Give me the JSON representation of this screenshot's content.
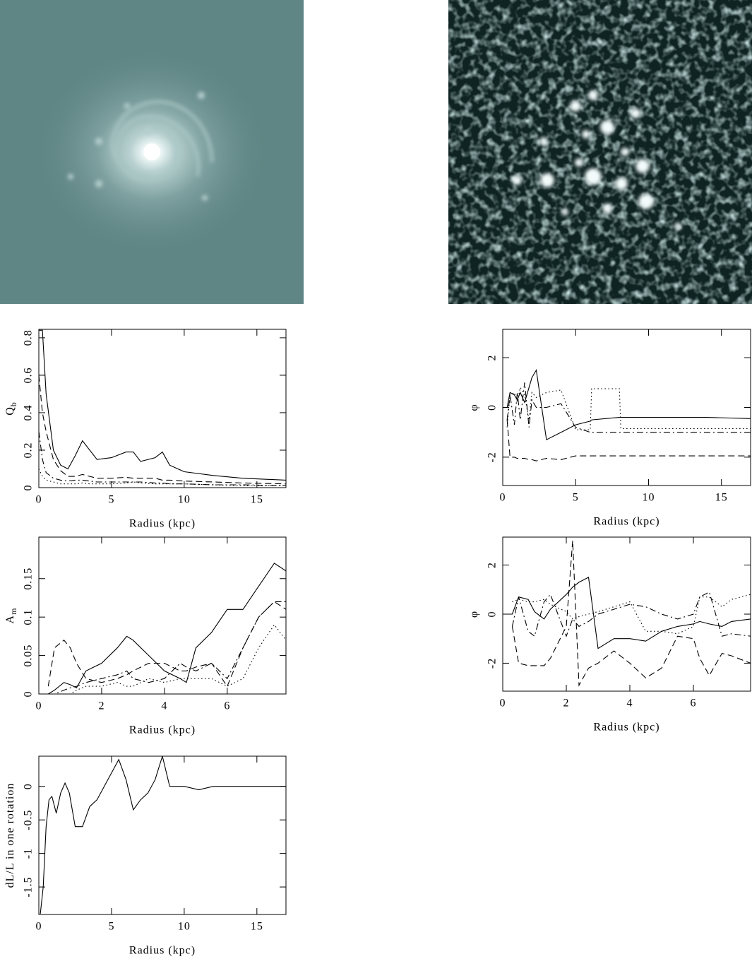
{
  "chart_data": [
    {
      "type": "line",
      "xlabel": "Radius (kpc)",
      "ylabel": {
        "text": "Q",
        "sub": "b"
      },
      "x": [
        0,
        0.25,
        0.5,
        1,
        1.5,
        2,
        2.5,
        3,
        3.5,
        4,
        5,
        6,
        6.5,
        7,
        8,
        8.5,
        9,
        10,
        12,
        14,
        17
      ],
      "xlim": [
        0,
        17
      ],
      "xticks": [
        0,
        5,
        10,
        15
      ],
      "ylim": [
        0,
        0.845
      ],
      "yticks": [
        0,
        0.2,
        0.4,
        0.6,
        0.8
      ],
      "grid": false,
      "series": [
        {
          "color": "#000000",
          "style": "solid",
          "values": [
            0.84,
            0.84,
            0.5,
            0.2,
            0.12,
            0.1,
            0.17,
            0.25,
            0.2,
            0.15,
            0.16,
            0.19,
            0.19,
            0.14,
            0.16,
            0.19,
            0.12,
            0.085,
            0.065,
            0.05,
            0.04
          ]
        },
        {
          "color": "#000000",
          "style": "dashed",
          "values": [
            0.6,
            0.4,
            0.3,
            0.15,
            0.09,
            0.06,
            0.06,
            0.07,
            0.06,
            0.05,
            0.05,
            0.055,
            0.05,
            0.05,
            0.05,
            0.04,
            0.04,
            0.035,
            0.03,
            0.025,
            0.02
          ]
        },
        {
          "color": "#000000",
          "style": "dotted",
          "values": [
            0.1,
            0.06,
            0.04,
            0.03,
            0.02,
            0.02,
            0.02,
            0.025,
            0.02,
            0.02,
            0.02,
            0.025,
            0.03,
            0.025,
            0.02,
            0.02,
            0.02,
            0.02,
            0.015,
            0.01,
            0.01
          ]
        },
        {
          "color": "#000000",
          "style": "dashdot",
          "values": [
            0.3,
            0.15,
            0.08,
            0.05,
            0.04,
            0.035,
            0.04,
            0.04,
            0.035,
            0.03,
            0.03,
            0.03,
            0.03,
            0.03,
            0.025,
            0.025,
            0.02,
            0.02,
            0.015,
            0.015,
            0.01
          ]
        }
      ]
    },
    {
      "type": "line",
      "xlabel": "Radius (kpc)",
      "ylabel": {
        "text": "φ"
      },
      "x": [
        0.3,
        0.5,
        0.8,
        1,
        1.2,
        1.5,
        1.8,
        2,
        2.3,
        3,
        4,
        5,
        6,
        6.1,
        8,
        8.1,
        10,
        12,
        14,
        17
      ],
      "xlim": [
        0,
        17
      ],
      "xticks": [
        0,
        5,
        10,
        15
      ],
      "ylim": [
        -3.14,
        3.14
      ],
      "yticks": [
        -2,
        0,
        2
      ],
      "grid": false,
      "series": [
        {
          "color": "#000000",
          "style": "solid",
          "values": [
            0,
            0.6,
            0.5,
            0.3,
            0.6,
            0.2,
            0.8,
            1.2,
            1.5,
            -1.3,
            -1.0,
            -0.7,
            -0.55,
            -0.5,
            -0.4,
            -0.4,
            -0.4,
            -0.4,
            -0.4,
            -0.45
          ]
        },
        {
          "color": "#000000",
          "style": "dashed",
          "values": [
            -0.5,
            -2.0,
            -2.0,
            -2.05,
            -2.05,
            -2.05,
            -2.1,
            -2.1,
            -2.15,
            -2.05,
            -2.1,
            -1.95,
            -1.95,
            -1.95,
            -1.95,
            -1.95,
            -1.95,
            -1.95,
            -1.95,
            -1.95
          ]
        },
        {
          "color": "#000000",
          "style": "dotted",
          "values": [
            -0.8,
            0.5,
            0.6,
            0.2,
            0.8,
            0.5,
            -0.5,
            0.6,
            0.4,
            0.6,
            0.7,
            -0.9,
            -0.9,
            0.75,
            0.75,
            -0.85,
            -0.85,
            -0.85,
            -0.85,
            -0.85
          ]
        },
        {
          "color": "#000000",
          "style": "dashdot",
          "values": [
            -0.5,
            0.5,
            -0.7,
            0.6,
            -0.5,
            1.0,
            -0.8,
            0.3,
            0,
            0,
            0.15,
            -0.8,
            -1.0,
            -1.0,
            -1.0,
            -1.0,
            -1.0,
            -1.0,
            -1.0,
            -1.0
          ]
        }
      ]
    },
    {
      "type": "line",
      "xlabel": "Radius (kpc)",
      "ylabel": {
        "text": "A",
        "sub": "m"
      },
      "x": [
        0.3,
        0.5,
        0.8,
        1,
        1.2,
        1.5,
        2,
        2.5,
        2.8,
        3,
        3.5,
        4,
        4.5,
        4.7,
        5,
        5.5,
        6,
        6.5,
        7,
        7.5,
        7.87
      ],
      "xlim": [
        0,
        7.87
      ],
      "xticks": [
        0,
        2,
        4,
        6
      ],
      "ylim": [
        0,
        0.204
      ],
      "yticks": [
        0,
        0.05,
        0.1,
        0.15
      ],
      "grid": false,
      "series": [
        {
          "color": "#000000",
          "style": "solid",
          "values": [
            0,
            0.005,
            0.015,
            0.012,
            0.008,
            0.03,
            0.04,
            0.06,
            0.075,
            0.07,
            0.05,
            0.03,
            0.02,
            0.015,
            0.06,
            0.08,
            0.11,
            0.11,
            0.14,
            0.17,
            0.16
          ]
        },
        {
          "color": "#000000",
          "style": "dashed",
          "values": [
            0.01,
            0.06,
            0.07,
            0.06,
            0.04,
            0.02,
            0.015,
            0.02,
            0.025,
            0.03,
            0.04,
            0.04,
            0.03,
            0.03,
            0.035,
            0.04,
            0.01,
            0.06,
            0.1,
            0.12,
            0.11
          ]
        },
        {
          "color": "#000000",
          "style": "dotted",
          "values": [
            0,
            0,
            0,
            0,
            0.005,
            0.01,
            0.01,
            0.015,
            0.01,
            0.01,
            0.02,
            0.015,
            0.02,
            0.02,
            0.02,
            0.02,
            0.01,
            0.02,
            0.06,
            0.09,
            0.07
          ]
        },
        {
          "color": "#000000",
          "style": "dashdot",
          "values": [
            0,
            0,
            0.005,
            0.008,
            0.01,
            0.015,
            0.02,
            0.025,
            0.03,
            0.02,
            0.015,
            0.02,
            0.04,
            0.035,
            0.03,
            0.04,
            0.02,
            0.06,
            0.1,
            0.12,
            0.12
          ]
        }
      ]
    },
    {
      "type": "line",
      "xlabel": "Radius (kpc)",
      "ylabel": {
        "text": "φ"
      },
      "x": [
        0,
        0.3,
        0.5,
        0.8,
        1,
        1.3,
        1.5,
        2,
        2.2,
        2.4,
        2.7,
        3,
        3.5,
        4,
        4.5,
        5,
        5.5,
        6,
        6.2,
        6.5,
        6.9,
        7.2,
        7.8
      ],
      "xlim": [
        0,
        7.8
      ],
      "xticks": [
        0,
        2,
        4,
        6
      ],
      "ylim": [
        -3.14,
        3.14
      ],
      "yticks": [
        -2,
        0,
        2
      ],
      "grid": false,
      "series": [
        {
          "color": "#000000",
          "style": "solid",
          "values": [
            0,
            0,
            0.7,
            0.6,
            0.1,
            -0.2,
            0.2,
            0.8,
            1.1,
            1.3,
            1.5,
            -1.4,
            -1.0,
            -1.0,
            -1.1,
            -0.7,
            -0.5,
            -0.4,
            -0.3,
            -0.4,
            -0.5,
            -0.3,
            -0.2
          ]
        },
        {
          "color": "#000000",
          "style": "dashed",
          "values": [
            null,
            -0.5,
            -2,
            -2.1,
            -2.1,
            -2.1,
            -1.8,
            -0.5,
            3.0,
            -2.9,
            -2.2,
            -2.0,
            -1.5,
            -2.0,
            -2.6,
            -2.2,
            -0.9,
            -1.0,
            -1.8,
            -2.5,
            -1.6,
            -1.7,
            -2.0
          ]
        },
        {
          "color": "#000000",
          "style": "dotted",
          "values": [
            null,
            0.5,
            0.6,
            0.5,
            0.5,
            0.6,
            0.4,
            0.1,
            -0.2,
            -0.1,
            0,
            0.1,
            0.3,
            0.5,
            -0.7,
            -0.7,
            -0.8,
            -0.5,
            0.7,
            0.7,
            0.3,
            0.6,
            0.8
          ]
        },
        {
          "color": "#000000",
          "style": "dashdot",
          "values": [
            null,
            -0.5,
            0.7,
            -0.7,
            -0.9,
            0.5,
            0.8,
            -0.9,
            -0.2,
            -0.5,
            -0.3,
            0,
            0.2,
            0.4,
            0.3,
            0,
            -0.2,
            0,
            0.7,
            0.9,
            -0.9,
            -0.8,
            -0.9
          ]
        }
      ]
    },
    {
      "type": "line",
      "xlabel": "Radius (kpc)",
      "ylabel": {
        "text": "dL/L in one rotation"
      },
      "x": [
        0.1,
        0.3,
        0.5,
        0.7,
        0.9,
        1.2,
        1.5,
        1.8,
        2.1,
        2.5,
        3,
        3.5,
        4,
        4.5,
        5,
        5.5,
        6,
        6.5,
        7,
        7.5,
        8,
        8.5,
        9,
        10,
        11,
        12,
        14,
        17
      ],
      "xlim": [
        0,
        17
      ],
      "xticks": [
        0,
        5,
        10,
        15
      ],
      "ylim": [
        -1.91,
        0.45
      ],
      "yticks": [
        -1.5,
        -1,
        -0.5,
        0
      ],
      "grid": false,
      "series": [
        {
          "color": "#000000",
          "style": "solid",
          "values": [
            -1.9,
            -1.5,
            -0.6,
            -0.2,
            -0.15,
            -0.4,
            -0.1,
            0.05,
            -0.1,
            -0.6,
            -0.6,
            -0.3,
            -0.2,
            0.0,
            0.2,
            0.4,
            0.1,
            -0.35,
            -0.2,
            -0.1,
            0.1,
            0.45,
            0.0,
            0,
            -0.05,
            0,
            0,
            0.0
          ]
        }
      ]
    }
  ]
}
